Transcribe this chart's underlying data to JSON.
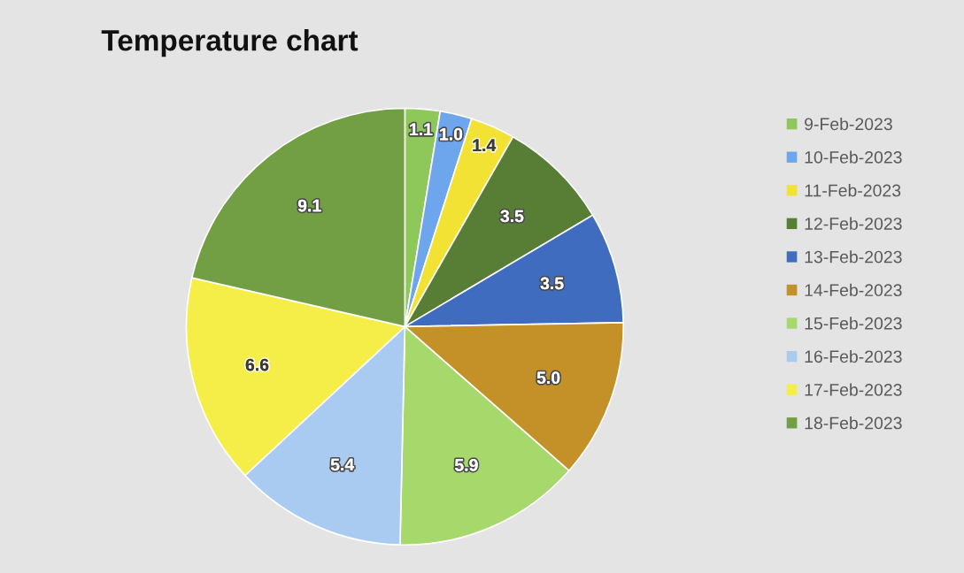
{
  "chart_data": {
    "type": "pie",
    "title": "Temperature chart",
    "categories": [
      "9-Feb-2023",
      "10-Feb-2023",
      "11-Feb-2023",
      "12-Feb-2023",
      "13-Feb-2023",
      "14-Feb-2023",
      "15-Feb-2023",
      "16-Feb-2023",
      "17-Feb-2023",
      "18-Feb-2023"
    ],
    "values": [
      1.1,
      1.0,
      1.4,
      3.5,
      3.5,
      5.0,
      5.9,
      5.4,
      6.6,
      9.1
    ],
    "value_labels": [
      "1.1",
      "1.0",
      "1.4",
      "3.5",
      "3.5",
      "5.0",
      "5.9",
      "5.4",
      "6.6",
      "9.1"
    ],
    "colors": [
      "#8fc85a",
      "#6ea6ee",
      "#f2e233",
      "#587d34",
      "#3f6cbf",
      "#c49128",
      "#a6d86c",
      "#a9cbf2",
      "#f6ee48",
      "#729f43"
    ],
    "legend": "right"
  }
}
